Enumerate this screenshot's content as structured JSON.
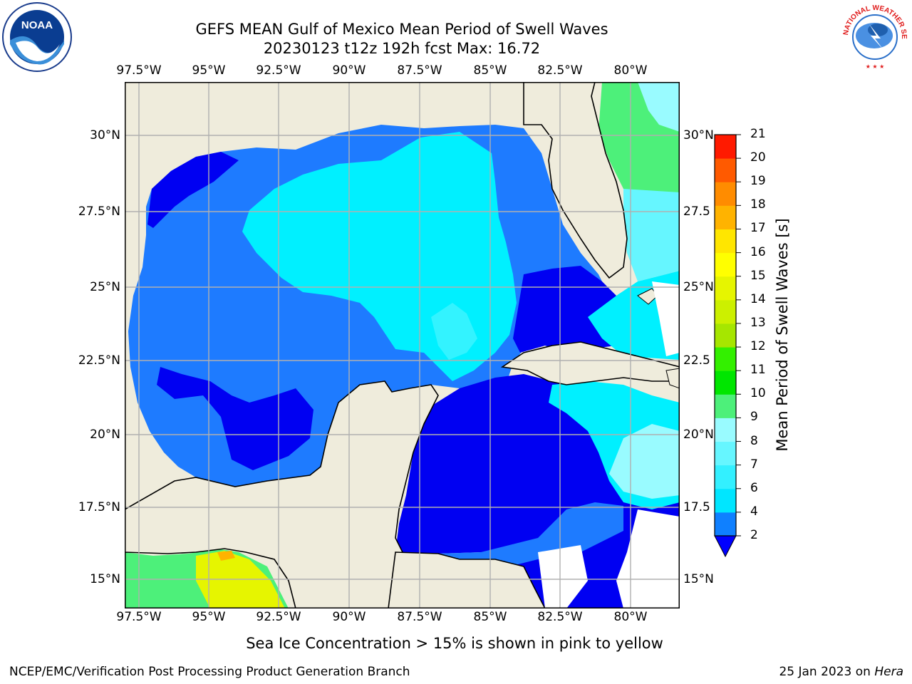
{
  "title": {
    "line1": "GEFS MEAN Gulf of Mexico Mean Period of Swell Waves",
    "line2": "20230123 t12z 192h fcst   Max: 16.72"
  },
  "map": {
    "lon_labels": [
      "97.5°W",
      "95°W",
      "92.5°W",
      "90°W",
      "87.5°W",
      "85°W",
      "82.5°W",
      "80°W"
    ],
    "lat_labels": [
      "30°N",
      "27.5°N",
      "25°N",
      "22.5°N",
      "20°N",
      "17.5°N",
      "15°N"
    ],
    "right_lat_labels": [
      "30°N",
      "27.5",
      "25°N",
      "22.5",
      "20°N",
      "17.5",
      "15°N"
    ],
    "land_color": "#efecdc",
    "grid_color": "#b0b0b0"
  },
  "colorbar": {
    "title": "Mean Period of Swell Waves [s]",
    "ticks": [
      "2",
      "4",
      "6",
      "7",
      "8",
      "9",
      "10",
      "11",
      "12",
      "13",
      "14",
      "15",
      "16",
      "17",
      "18",
      "19",
      "20",
      "21"
    ],
    "colors": [
      "#0f80ff",
      "#00e6ff",
      "#33f0ff",
      "#66f6ff",
      "#99fbff",
      "#4df07a",
      "#00e600",
      "#33f000",
      "#a6e600",
      "#ccf000",
      "#e6f500",
      "#ffff00",
      "#ffe600",
      "#ffb300",
      "#ff8c00",
      "#ff5a00",
      "#ff1a00"
    ],
    "extend_color": "#0000ff"
  },
  "note": "Sea Ice Concentration > 15% is shown in pink to yellow",
  "footer": {
    "left": "NCEP/EMC/Verification Post Processing Product Generation Branch",
    "date": "25 Jan 2023 on ",
    "host": "Hera"
  },
  "logos": {
    "noaa_text": "NOAA",
    "nws_text": "NATIONAL WEATHER SERVICE"
  }
}
